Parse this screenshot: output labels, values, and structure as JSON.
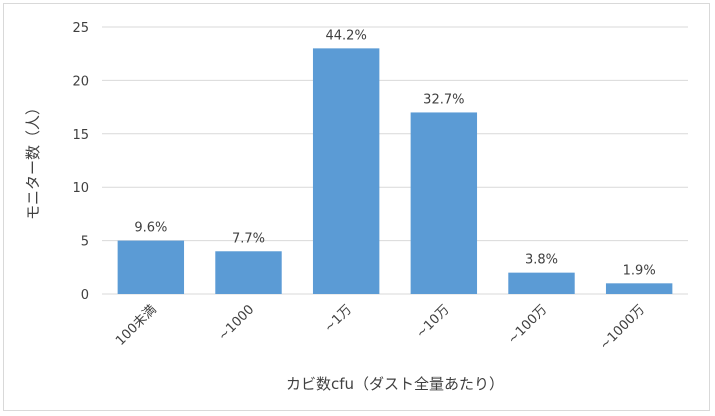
{
  "chart_data": {
    "type": "bar",
    "categories": [
      "100未満",
      "~1000",
      "~1万",
      "~10万",
      "~100万",
      "~1000万"
    ],
    "values": [
      5,
      4,
      23,
      17,
      2,
      1
    ],
    "data_labels": [
      "9.6%",
      "7.7%",
      "44.2%",
      "32.7%",
      "3.8%",
      "1.9%"
    ],
    "xlabel": "カビ数cfu（ダスト全量あたり）",
    "ylabel": "モニター数（人）",
    "ylim": [
      0,
      25
    ],
    "yticks": [
      0,
      5,
      10,
      15,
      20,
      25
    ],
    "grid": true,
    "bar_color": "#5b9bd5",
    "legend": "none"
  }
}
